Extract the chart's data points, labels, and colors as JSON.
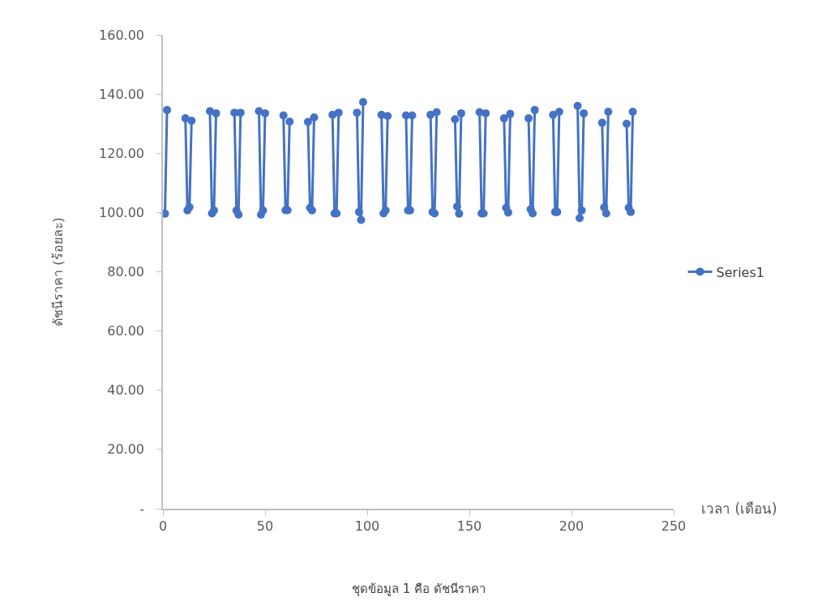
{
  "chart_data": {
    "type": "line",
    "ylabel": "ดัชนีราคา (ร้อยละ)",
    "xlabel": "เวลา (เดือน)",
    "annotations": [
      "ชุดข้อมูล 1 คือ ดัชนีราคา"
    ],
    "x": [
      1,
      2,
      6,
      11,
      12,
      13,
      14,
      18,
      23,
      24,
      25,
      26,
      30,
      35,
      36,
      37,
      38,
      42,
      47,
      48,
      49,
      50,
      54,
      59,
      60,
      61,
      62,
      66,
      71,
      72,
      73,
      74,
      78,
      83,
      84,
      85,
      86,
      90,
      95,
      96,
      97,
      98,
      102,
      107,
      108,
      109,
      110,
      114,
      119,
      120,
      121,
      122,
      126,
      131,
      132,
      133,
      134,
      138,
      143,
      144,
      145,
      146,
      150,
      155,
      156,
      157,
      158,
      162,
      167,
      168,
      169,
      170,
      174,
      179,
      180,
      181,
      182,
      186,
      191,
      192,
      193,
      194,
      198,
      203,
      204,
      205,
      206,
      210,
      215,
      216,
      217,
      218,
      222,
      227,
      228,
      229,
      230
    ],
    "series": [
      {
        "name": "Series1",
        "color": "#4472c4",
        "values": [
          99.6,
          134.6,
          null,
          131.8,
          100.7,
          101.8,
          131.0,
          null,
          134.2,
          99.7,
          100.7,
          133.5,
          null,
          133.7,
          100.7,
          99.3,
          133.7,
          null,
          134.2,
          99.3,
          100.7,
          133.5,
          null,
          132.8,
          100.8,
          100.8,
          130.7,
          null,
          130.6,
          101.6,
          100.7,
          132.1,
          null,
          133.0,
          99.7,
          99.7,
          133.7,
          null,
          133.7,
          100.2,
          97.5,
          137.3,
          null,
          133.0,
          99.7,
          100.7,
          132.6,
          null,
          132.8,
          100.7,
          100.7,
          132.8,
          null,
          133.0,
          100.2,
          99.7,
          133.9,
          null,
          131.5,
          102.0,
          99.6,
          133.5,
          null,
          133.9,
          99.7,
          99.7,
          133.5,
          null,
          131.8,
          101.6,
          100.0,
          133.3,
          null,
          131.8,
          101.1,
          99.7,
          134.6,
          null,
          133.0,
          100.2,
          100.2,
          134.0,
          null,
          136.0,
          98.1,
          100.7,
          133.5,
          null,
          130.3,
          101.7,
          99.7,
          134.0,
          null,
          130.0,
          101.6,
          100.2,
          134.0
        ]
      }
    ],
    "xlim": [
      0,
      250
    ],
    "xticks": [
      0,
      50,
      100,
      150,
      200,
      250
    ],
    "ylim": [
      0,
      160
    ],
    "yticks": [
      {
        "value": 0,
        "label": "-"
      },
      {
        "value": 20,
        "label": "20.00"
      },
      {
        "value": 40,
        "label": "40.00"
      },
      {
        "value": 60,
        "label": "60.00"
      },
      {
        "value": 80,
        "label": "80.00"
      },
      {
        "value": 100,
        "label": "100.00"
      },
      {
        "value": 120,
        "label": "120.00"
      },
      {
        "value": 140,
        "label": "140.00"
      },
      {
        "value": 160,
        "label": "160.00"
      }
    ],
    "grid": false,
    "legend": "right",
    "marker": "circle",
    "line_style": "solid"
  }
}
